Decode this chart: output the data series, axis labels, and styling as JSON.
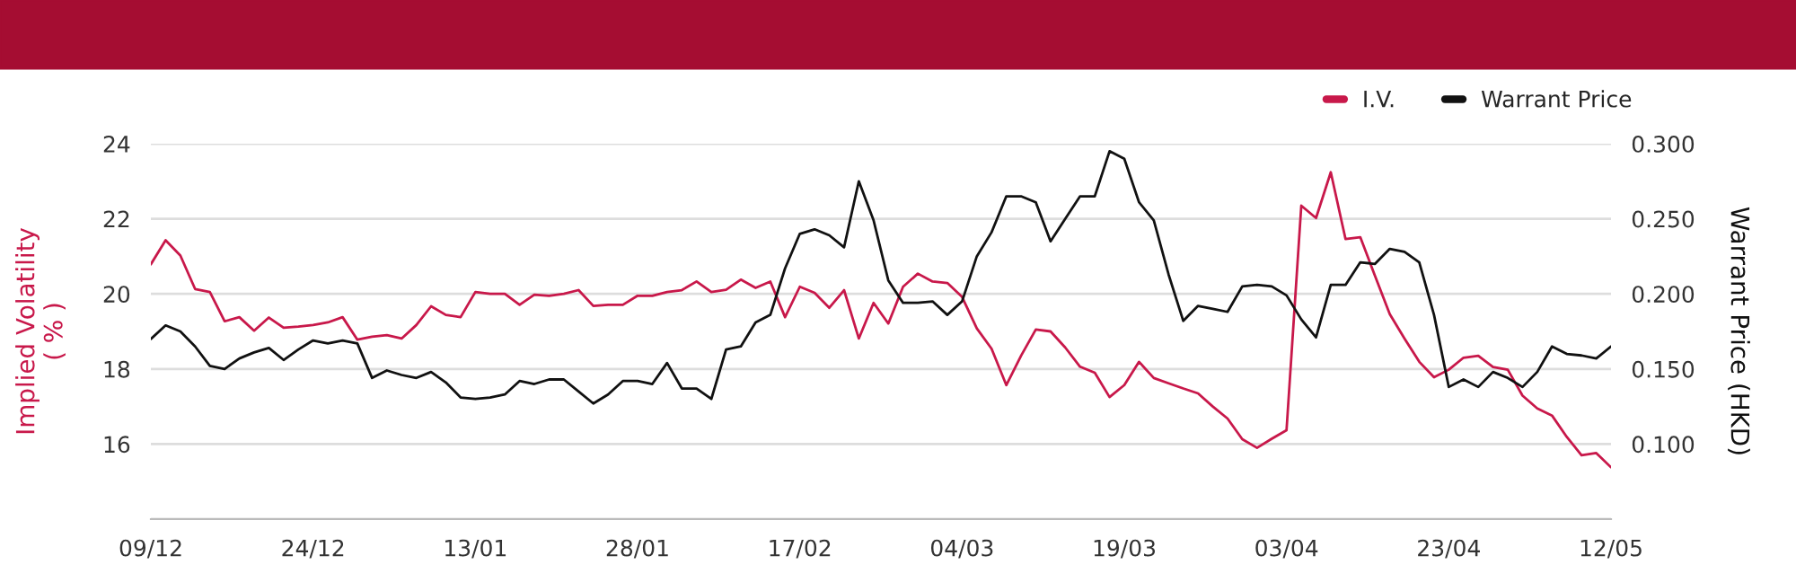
{
  "chart_data": {
    "type": "line",
    "categories": [
      "09/12",
      null,
      null,
      null,
      null,
      null,
      null,
      null,
      null,
      null,
      null,
      "24/12",
      null,
      null,
      null,
      null,
      null,
      null,
      null,
      null,
      null,
      null,
      "13/01",
      null,
      null,
      null,
      null,
      null,
      null,
      null,
      null,
      null,
      null,
      "28/01",
      null,
      null,
      null,
      null,
      null,
      null,
      null,
      null,
      null,
      null,
      "17/02",
      null,
      null,
      null,
      null,
      null,
      null,
      null,
      null,
      null,
      null,
      "04/03",
      null,
      null,
      null,
      null,
      null,
      null,
      null,
      null,
      null,
      null,
      "19/03",
      null,
      null,
      null,
      null,
      null,
      null,
      null,
      null,
      null,
      null,
      "03/04",
      null,
      null,
      null,
      null,
      null,
      null,
      null,
      null,
      null,
      null,
      "23/04",
      null,
      null,
      null,
      null,
      null,
      null,
      null,
      null,
      null,
      null,
      "12/05"
    ],
    "series": [
      {
        "name": "I.V.",
        "color": "#c8184a",
        "values": [
          20.79,
          21.43,
          21.02,
          20.13,
          20.05,
          19.27,
          19.38,
          19.02,
          19.37,
          19.1,
          19.13,
          19.17,
          19.24,
          19.38,
          18.78,
          18.86,
          18.9,
          18.81,
          19.17,
          19.67,
          19.44,
          19.38,
          20.05,
          20.0,
          20.0,
          19.71,
          19.98,
          19.95,
          20.0,
          20.1,
          19.68,
          19.71,
          19.71,
          19.95,
          19.95,
          20.05,
          20.1,
          20.33,
          20.05,
          20.11,
          20.38,
          20.16,
          20.33,
          19.38,
          20.19,
          20.03,
          19.63,
          20.1,
          18.81,
          19.76,
          19.21,
          20.19,
          20.54,
          20.33,
          20.29,
          19.92,
          19.08,
          18.54,
          17.57,
          18.35,
          19.05,
          19.0,
          18.57,
          18.06,
          17.9,
          17.25,
          17.57,
          18.19,
          17.76,
          17.62,
          17.48,
          17.35,
          17.0,
          16.68,
          16.13,
          15.9,
          16.14,
          16.37,
          22.35,
          22.02,
          23.24,
          21.46,
          21.51,
          20.48,
          19.46,
          18.81,
          18.19,
          17.78,
          17.98,
          18.3,
          18.35,
          18.05,
          17.98,
          17.29,
          16.95,
          16.76,
          16.19,
          15.7,
          15.76,
          15.38
        ]
      },
      {
        "name": "Warrant Price",
        "color": "#111111",
        "axis": "y2",
        "values": [
          0.17,
          0.179,
          0.175,
          0.165,
          0.152,
          0.15,
          0.157,
          0.161,
          0.164,
          0.156,
          0.163,
          0.169,
          0.167,
          0.169,
          0.167,
          0.144,
          0.149,
          0.146,
          0.144,
          0.148,
          0.141,
          0.131,
          0.13,
          0.131,
          0.133,
          0.142,
          0.14,
          0.143,
          0.143,
          0.135,
          0.127,
          0.133,
          0.142,
          0.142,
          0.14,
          0.154,
          0.137,
          0.137,
          0.13,
          0.163,
          0.165,
          0.181,
          0.186,
          0.217,
          0.24,
          0.243,
          0.239,
          0.231,
          0.275,
          0.249,
          0.209,
          0.194,
          0.194,
          0.195,
          0.186,
          0.195,
          0.225,
          0.241,
          0.265,
          0.265,
          0.261,
          0.235,
          0.25,
          0.265,
          0.265,
          0.295,
          0.29,
          0.261,
          0.249,
          0.213,
          0.182,
          0.192,
          0.19,
          0.188,
          0.205,
          0.206,
          0.205,
          0.199,
          0.183,
          0.171,
          0.206,
          0.206,
          0.221,
          0.22,
          0.23,
          0.228,
          0.221,
          0.186,
          0.138,
          0.143,
          0.138,
          0.148,
          0.144,
          0.138,
          0.148,
          0.165,
          0.16,
          0.159,
          0.157,
          0.165
        ]
      }
    ],
    "ylabel": "Implied Volatility\n( % )",
    "y2label": "Warrant Price (HKD)",
    "ylim": [
      14,
      24
    ],
    "yticks": [
      {
        "value": 14,
        "label": null
      },
      16,
      18,
      20,
      22,
      24
    ],
    "y2lim": [
      0.05,
      0.3
    ],
    "y2ticks": [
      {
        "value": 0.05,
        "label": null
      },
      {
        "value": 0.1,
        "label": "0.100"
      },
      {
        "value": 0.15,
        "label": "0.150"
      },
      {
        "value": 0.2,
        "label": "0.200"
      },
      {
        "value": 0.25,
        "label": "0.250"
      },
      {
        "value": 0.3,
        "label": "0.300"
      }
    ],
    "grid": "y",
    "legend": "top right",
    "marker": "none",
    "line_style": "solid"
  }
}
